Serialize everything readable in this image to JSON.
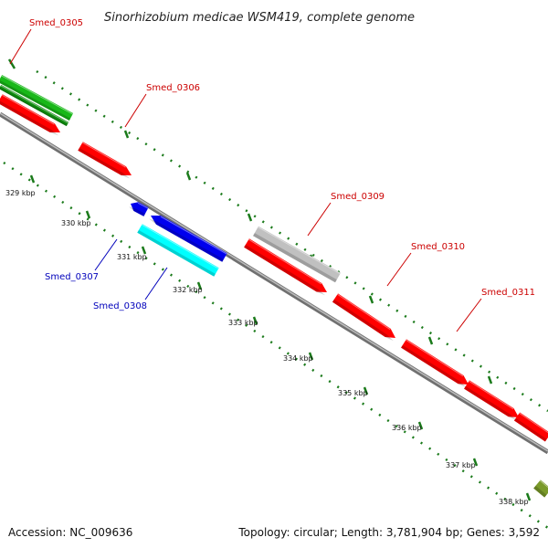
{
  "title": "Sinorhizobium medicae WSM419, complete genome",
  "genes_forward": [
    {
      "label": "Smed_0305",
      "color": "#18b818"
    },
    {
      "label": "Smed_0306",
      "color": "#ff0000"
    },
    {
      "label": "Smed_0309",
      "color": "#c0c0c0"
    },
    {
      "label": "Smed_0310",
      "color": "#ff0000"
    },
    {
      "label": "Smed_0311",
      "color": "#ff0000"
    }
  ],
  "genes_reverse": [
    {
      "label": "Smed_0307",
      "color": "#0000ee"
    },
    {
      "label": "Smed_0308",
      "color": "#00ffff"
    }
  ],
  "kbp_ticks": [
    "329 kbp",
    "330 kbp",
    "331 kbp",
    "332 kbp",
    "333 kbp",
    "334 kbp",
    "335 kbp",
    "336 kbp",
    "337 kbp",
    "338 kbp"
  ],
  "footer": {
    "accession": "Accession: NC_009636",
    "topology": "Topology: circular; Length: 3,781,904 bp; Genes: 3,592"
  },
  "colors": {
    "forward_label": "#cc0000",
    "reverse_label": "#0000bb",
    "backbone": "#8a8a8a",
    "tick": "#1a7a1a",
    "olive_gene": "#7a9a2a"
  }
}
